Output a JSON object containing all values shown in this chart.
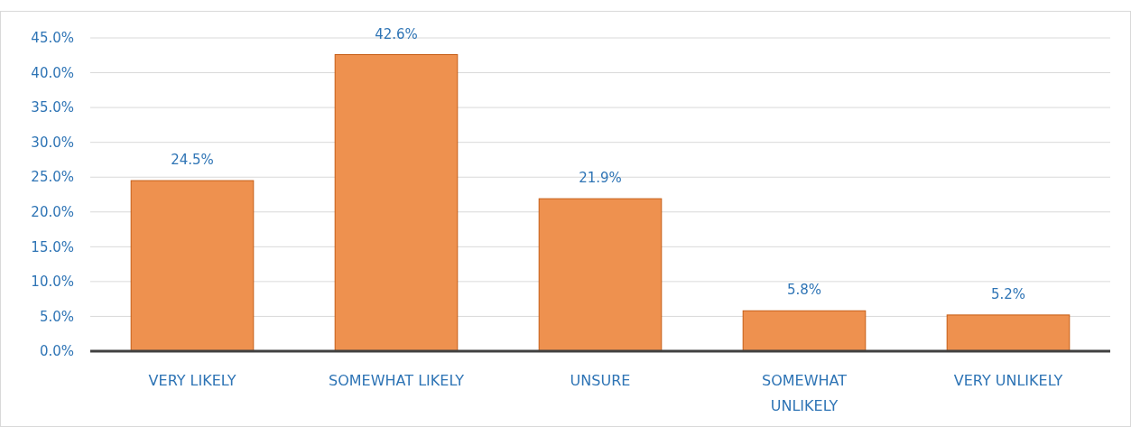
{
  "chart_data": {
    "type": "bar",
    "categories": [
      "VERY LIKELY",
      "SOMEWHAT LIKELY",
      "UNSURE",
      "SOMEWHAT UNLIKELY",
      "VERY UNLIKELY"
    ],
    "values": [
      24.5,
      42.6,
      21.9,
      5.8,
      5.2
    ],
    "value_labels": [
      "24.5%",
      "42.6%",
      "21.9%",
      "5.8%",
      "5.2%"
    ],
    "color": "#ee914f",
    "ylim": [
      0,
      45
    ],
    "yticks": [
      {
        "value": 0,
        "label": "0.0%"
      },
      {
        "value": 5,
        "label": "5.0%"
      },
      {
        "value": 10,
        "label": "10.0%"
      },
      {
        "value": 15,
        "label": "15.0%"
      },
      {
        "value": 20,
        "label": "20.0%"
      },
      {
        "value": 25,
        "label": "25.0%"
      },
      {
        "value": 30,
        "label": "30.0%"
      },
      {
        "value": 35,
        "label": "35.0%"
      },
      {
        "value": 40,
        "label": "40.0%"
      },
      {
        "value": 45,
        "label": "45.0%"
      }
    ],
    "grid": "y"
  }
}
